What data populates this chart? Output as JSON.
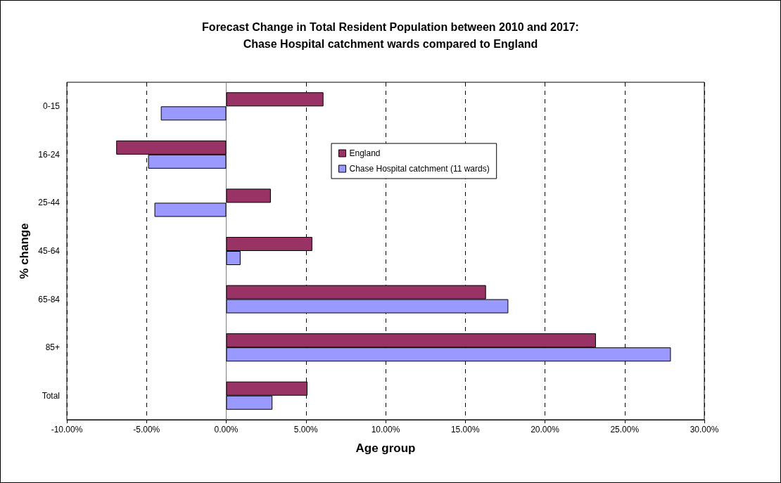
{
  "chart_data": {
    "type": "bar",
    "orientation": "horizontal",
    "title": "Forecast Change in Total Resident Population between 2010 and 2017:\nChase Hospital catchment wards compared to England",
    "xlabel": "Age group",
    "ylabel": "% change",
    "categories": [
      "0-15",
      "16-24",
      "25-44",
      "45-64",
      "65-84",
      "85+",
      "Total"
    ],
    "series": [
      {
        "name": "England",
        "color": "#993366",
        "values": [
          6.1,
          -6.9,
          2.8,
          5.4,
          16.3,
          23.2,
          5.1
        ]
      },
      {
        "name": "Chase Hospital catchment (11 wards)",
        "color": "#9999ff",
        "values": [
          -4.1,
          -4.9,
          -4.5,
          0.9,
          17.7,
          27.9,
          2.9
        ]
      }
    ],
    "xlim": [
      -10,
      30
    ],
    "xticks": [
      {
        "value": -10,
        "label": "-10.00%"
      },
      {
        "value": -5,
        "label": "-5.00%"
      },
      {
        "value": 0,
        "label": "0.00%"
      },
      {
        "value": 5,
        "label": "5.00%"
      },
      {
        "value": 10,
        "label": "10.00%"
      },
      {
        "value": 15,
        "label": "15.00%"
      },
      {
        "value": 20,
        "label": "20.00%"
      },
      {
        "value": 25,
        "label": "25.00%"
      },
      {
        "value": 30,
        "label": "30.00%"
      }
    ],
    "grid": "x",
    "legend": "top right"
  }
}
